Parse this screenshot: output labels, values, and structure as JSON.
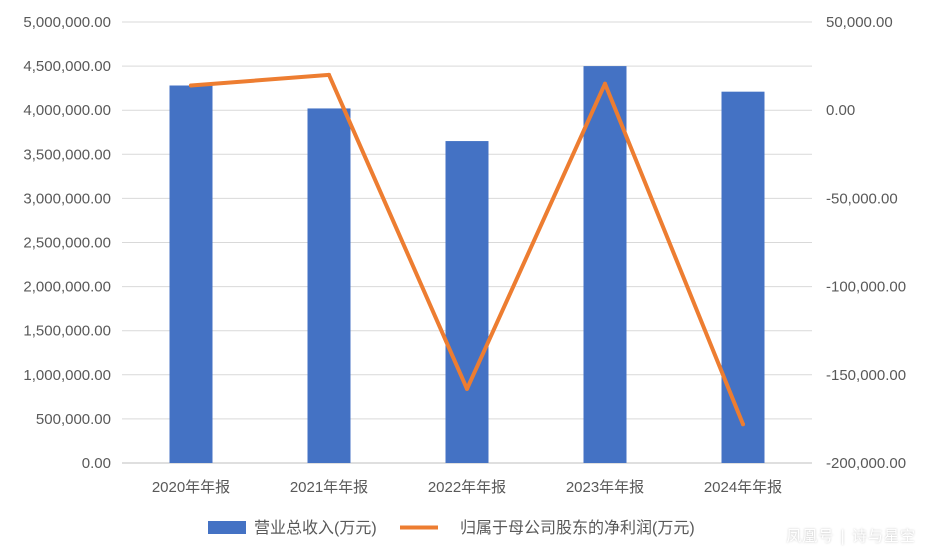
{
  "chart_data": {
    "type": "bar",
    "categories": [
      "2020年年报",
      "2021年年报",
      "2022年年报",
      "2023年年报",
      "2024年年报"
    ],
    "series": [
      {
        "name": "营业总收入(万元)",
        "type": "bar",
        "axis": "left",
        "color": "#4472C4",
        "values": [
          4280000,
          4020000,
          3650000,
          4500000,
          4210000
        ]
      },
      {
        "name": "归属于母公司股东的净利润(万元)",
        "type": "line",
        "axis": "right",
        "color": "#ED7D31",
        "values": [
          14000,
          20000,
          -158000,
          15000,
          -178000
        ]
      }
    ],
    "left_axis": {
      "ylim": [
        0,
        5000000
      ],
      "ticks": [
        "0.00",
        "500,000.00",
        "1,000,000.00",
        "1,500,000.00",
        "2,000,000.00",
        "2,500,000.00",
        "3,000,000.00",
        "3,500,000.00",
        "4,000,000.00",
        "4,500,000.00",
        "5,000,000.00"
      ],
      "tick_values": [
        0,
        500000,
        1000000,
        1500000,
        2000000,
        2500000,
        3000000,
        3500000,
        4000000,
        4500000,
        5000000
      ]
    },
    "right_axis": {
      "ylim": [
        -200000,
        50000
      ],
      "ticks": [
        "-200,000.00",
        "-150,000.00",
        "-100,000.00",
        "-50,000.00",
        "0.00",
        "50,000.00"
      ],
      "tick_values": [
        -200000,
        -150000,
        -100000,
        -50000,
        0,
        50000
      ]
    },
    "grid": true,
    "legend_position": "bottom",
    "title": "",
    "xlabel": "",
    "ylabel": ""
  },
  "watermark": "凤凰号 | 诗与星空"
}
